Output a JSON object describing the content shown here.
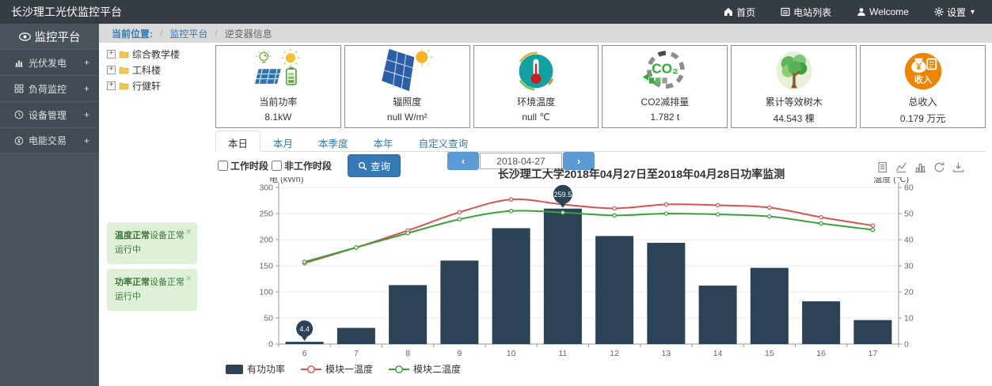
{
  "navbar": {
    "brand": "长沙理工光伏监控平台",
    "items": [
      {
        "label": "首页",
        "icon": "home-icon"
      },
      {
        "label": "电站列表",
        "icon": "list-icon"
      },
      {
        "label": "Welcome",
        "icon": "user-icon"
      },
      {
        "label": "设置",
        "icon": "gear-icon",
        "caret": "▾"
      }
    ]
  },
  "sidebar": {
    "title": "监控平台",
    "title_icon": "eye-icon",
    "items": [
      {
        "label": "光伏发电",
        "icon": "bar-chart-icon",
        "suffix": "+"
      },
      {
        "label": "负荷监控",
        "icon": "grid-icon",
        "suffix": "+"
      },
      {
        "label": "设备管理",
        "icon": "clock-icon",
        "suffix": "+"
      },
      {
        "label": "电能交易",
        "icon": "yen-icon",
        "suffix": "+"
      }
    ]
  },
  "breadcrumb": {
    "label": "当前位置:",
    "links": [
      "监控平台",
      "逆变器信息"
    ]
  },
  "tree": {
    "items": [
      "综合教学楼",
      "工科楼",
      "行健轩"
    ]
  },
  "stats": [
    {
      "label": "当前功率",
      "value": "8.1kW",
      "icon": "solar-power-icon"
    },
    {
      "label": "辐照度",
      "value": "null W/m²",
      "icon": "irradiance-icon"
    },
    {
      "label": "环境温度",
      "value": "null ℃",
      "icon": "thermometer-icon"
    },
    {
      "label": "CO2减排量",
      "value": "1.782 t",
      "icon": "co2-icon",
      "icon_text": "CO₂"
    },
    {
      "label": "累计等效树木",
      "value": "44.543 棵",
      "icon": "tree-icon"
    },
    {
      "label": "总收入",
      "value": "0.179 万元",
      "icon": "income-icon",
      "icon_text": "收入"
    }
  ],
  "tabs": [
    {
      "label": "本日",
      "active": true
    },
    {
      "label": "本月",
      "active": false
    },
    {
      "label": "本季度",
      "active": false
    },
    {
      "label": "本年",
      "active": false
    },
    {
      "label": "自定义查询",
      "active": false
    }
  ],
  "filters": {
    "checkboxes": [
      "工作时段",
      "非工作时段"
    ],
    "search_label": "查询",
    "search_icon": "search-icon",
    "date": "2018-04-27"
  },
  "toasts": [
    {
      "title": "温度正常",
      "text": "设备正常运行中"
    },
    {
      "title": "功率正常",
      "text": "设备正常运行中"
    }
  ],
  "chart_toolbar": [
    "dataview-icon",
    "line-chart-icon",
    "bar-chart-icon",
    "restore-icon",
    "download-icon"
  ],
  "chart_data": {
    "type": "bar+line",
    "title": "长沙理工大学2018年04月27日至2018年04月28日功率监测",
    "categories": [
      6,
      7,
      8,
      9,
      10,
      11,
      12,
      13,
      14,
      15,
      16,
      17
    ],
    "series": [
      {
        "name": "有功功率",
        "type": "bar",
        "axis": "left",
        "color": "#2c4257",
        "values": [
          4.4,
          31,
          113,
          160,
          222,
          259.5,
          207,
          194,
          112,
          146,
          82,
          46
        ]
      },
      {
        "name": "模块一温度",
        "type": "line",
        "axis": "right",
        "color": "#d9544f",
        "values": [
          31,
          37,
          43.5,
          50.5,
          55.4,
          53.5,
          52,
          53.5,
          53.2,
          52.3,
          48.6,
          45.4
        ]
      },
      {
        "name": "模块二温度",
        "type": "line",
        "axis": "right",
        "color": "#3aa13a",
        "values": [
          31.5,
          37,
          42.5,
          47.8,
          51,
          50.4,
          49.3,
          50,
          49.7,
          48.9,
          46.2,
          43.8
        ]
      }
    ],
    "y_left": {
      "label": "电 (kWh)",
      "min": 0,
      "max": 300,
      "step": 50
    },
    "y_right": {
      "label": "温度 (℃)",
      "min": 0,
      "max": 60,
      "step": 10
    },
    "marks": [
      {
        "series": 0,
        "index": 0,
        "value": 4.4
      },
      {
        "series": 0,
        "index": 5,
        "value": 259.5
      }
    ],
    "legend_position": "bottom-left",
    "grid": true
  },
  "ui": {
    "close": "×",
    "prev": "‹",
    "next": "›"
  }
}
